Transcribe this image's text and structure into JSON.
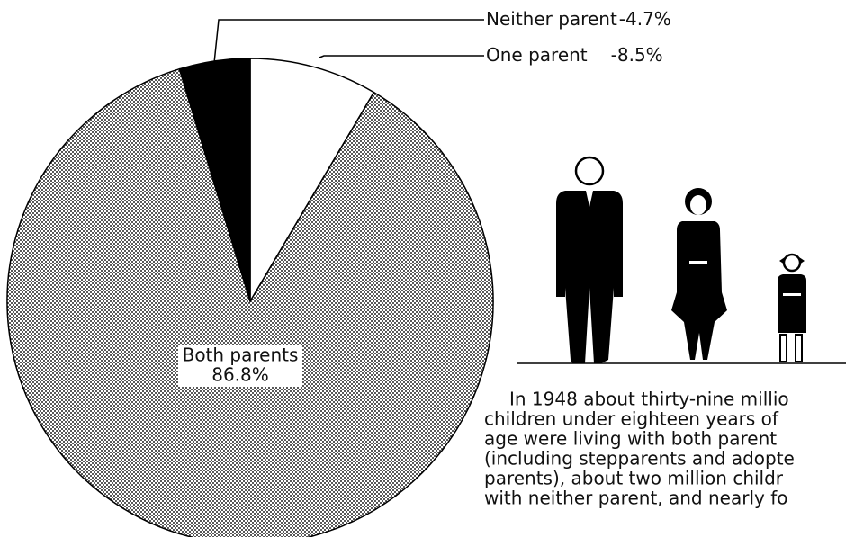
{
  "chart_data": {
    "type": "pie",
    "categories": [
      "One parent",
      "Both parents",
      "Neither parent"
    ],
    "values": [
      8.5,
      86.8,
      4.7
    ],
    "value_labels": [
      "8.5%",
      "86.8%",
      "4.7%"
    ],
    "fills": [
      "white",
      "dots",
      "black"
    ],
    "label_separator": "-",
    "paragraph": [
      "In 1948 about thirty-nine millio",
      "children under eighteen years of",
      "age were living with both parent",
      "(including stepparents and adopte",
      "parents), about two million childr",
      "with neither parent, and nearly fo"
    ]
  }
}
